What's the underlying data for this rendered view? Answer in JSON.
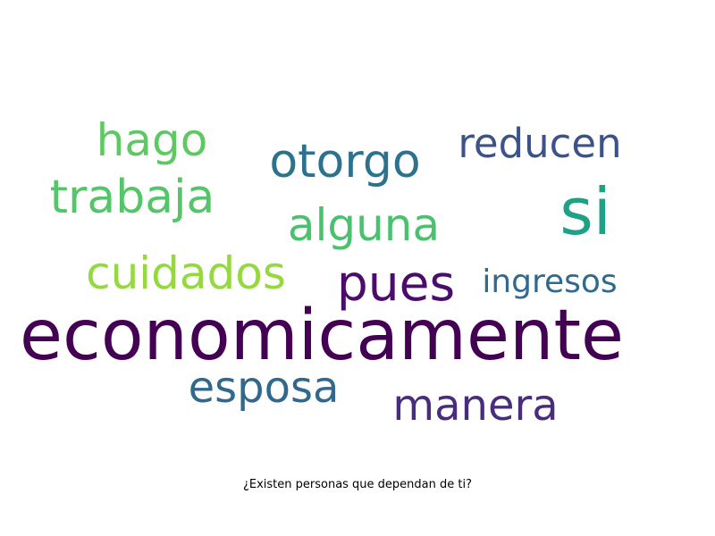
{
  "chart_data": {
    "type": "wordcloud",
    "title": "",
    "caption": "¿Existen personas que dependan de ti?",
    "words": [
      {
        "text": "economicamente",
        "weight": 100,
        "color": "#440154"
      },
      {
        "text": "si",
        "weight": 92,
        "color": "#1fa187"
      },
      {
        "text": "pues",
        "weight": 70,
        "color": "#4b0c6b"
      },
      {
        "text": "otorgo",
        "weight": 66,
        "color": "#2c728e"
      },
      {
        "text": "trabaja",
        "weight": 66,
        "color": "#54c568"
      },
      {
        "text": "hago",
        "weight": 64,
        "color": "#5ec962"
      },
      {
        "text": "alguna",
        "weight": 64,
        "color": "#4ac16d"
      },
      {
        "text": "cuidados",
        "weight": 64,
        "color": "#95d840"
      },
      {
        "text": "esposa",
        "weight": 62,
        "color": "#31688e"
      },
      {
        "text": "manera",
        "weight": 62,
        "color": "#472d7b"
      },
      {
        "text": "reducen",
        "weight": 58,
        "color": "#3b528b"
      },
      {
        "text": "ingresos",
        "weight": 46,
        "color": "#306a8e"
      }
    ]
  }
}
